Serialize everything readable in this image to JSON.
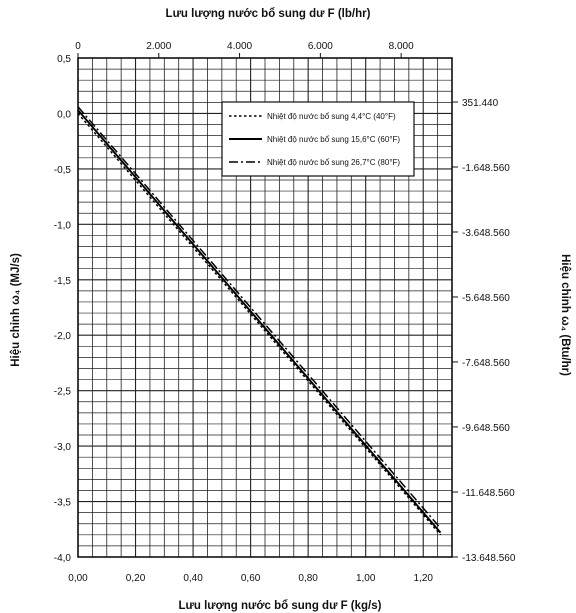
{
  "chart_data": {
    "type": "line",
    "top_xlabel": "Lưu lượng nước bổ sung dư F (lb/hr)",
    "top_xticks": [
      "0",
      "2.000",
      "4.000",
      "6.000",
      "8.000"
    ],
    "top_xtick_values": [
      0,
      2000,
      4000,
      6000,
      8000
    ],
    "top_xlim": [
      0,
      9259
    ],
    "xlabel": "Lưu lượng nước bổ sung dư F (kg/s)",
    "xlim": [
      0,
      1.3
    ],
    "xticks": [
      "0,00",
      "0,20",
      "0,40",
      "0,60",
      "0,80",
      "1,00",
      "1,20"
    ],
    "xtick_values": [
      0,
      0.2,
      0.4,
      0.6,
      0.8,
      1.0,
      1.2
    ],
    "ylabel": "Hiệu chỉnh ω₄ (MJ/s)",
    "ylim": [
      -4.0,
      0.5
    ],
    "yticks": [
      "0,5",
      "0,0",
      "-0,5",
      "-1,0",
      "-1,5",
      "-2,0",
      "-2,5",
      "-3,0",
      "-3,5",
      "-4,0"
    ],
    "ytick_values": [
      0.5,
      0.0,
      -0.5,
      -1.0,
      -1.5,
      -2.0,
      -2.5,
      -3.0,
      -3.5,
      -4.0
    ],
    "right_ylabel": "Hiệu chỉnh ω₄ (Btu/hr)",
    "right_yticks": [
      "351.440",
      "-1.648.560",
      "-3.648.560",
      "-5.648.560",
      "-7.648.560",
      "-9.648.560",
      "-11.648.560",
      "-13.648.560"
    ],
    "right_ytick_mj_values": [
      0.103,
      -0.483,
      -1.069,
      -1.655,
      -2.241,
      -2.827,
      -3.414,
      -4.0
    ],
    "grid": true,
    "legend_position": "top-right",
    "series": [
      {
        "name": "Nhiệt độ nước bổ sung 4,4°C (40°F)",
        "style": "dotted",
        "x": [
          0,
          1.26
        ],
        "y": [
          0.0,
          -3.8
        ]
      },
      {
        "name": "Nhiệt độ nước bổ sung 15,6°C (60°F)",
        "style": "solid",
        "x": [
          0,
          1.26
        ],
        "y": [
          0.03,
          -3.78
        ]
      },
      {
        "name": "Nhiệt độ nước bổ sung 26,7°C (80°F)",
        "style": "dashdot",
        "x": [
          0,
          1.26
        ],
        "y": [
          0.06,
          -3.74
        ]
      }
    ]
  }
}
